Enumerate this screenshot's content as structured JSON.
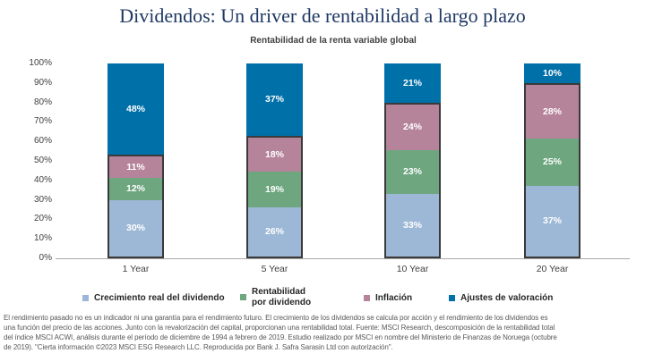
{
  "page": {
    "title": "Dividendos: Un driver de rentabilidad a largo plazo",
    "subtitle": "Rentabilidad de la renta variable global"
  },
  "chart_data": {
    "type": "bar",
    "stacked": true,
    "stack_unit": "percent",
    "title": "Rentabilidad de la renta variable global",
    "categories": [
      "1 Year",
      "5 Year",
      "10 Year",
      "20 Year"
    ],
    "series": [
      {
        "name": "Crecimiento real del dividendo",
        "color": "#9DB8D6",
        "values": [
          30,
          26,
          33,
          37
        ],
        "labels": [
          "30%",
          "26%",
          "33%",
          "37%"
        ]
      },
      {
        "name": "Rentabilidad por dividendo",
        "color": "#6DA67F",
        "values": [
          12,
          19,
          23,
          25
        ],
        "labels": [
          "12%",
          "19%",
          "23%",
          "25%"
        ]
      },
      {
        "name": "Inflación",
        "color": "#B5839A",
        "values": [
          11,
          18,
          24,
          28
        ],
        "labels": [
          "11%",
          "18%",
          "24%",
          "28%"
        ]
      },
      {
        "name": "Ajustes de valoración",
        "color": "#0070A8",
        "values": [
          48,
          37,
          21,
          10
        ],
        "labels": [
          "48%",
          "37%",
          "21%",
          "10%"
        ]
      }
    ],
    "yticks": [
      "0%",
      "10%",
      "20%",
      "30%",
      "40%",
      "50%",
      "60%",
      "70%",
      "80%",
      "90%",
      "100%"
    ],
    "ylim": [
      0,
      100
    ],
    "grid": false,
    "legend_position": "bottom",
    "annotation_style": "first three series outlined together with dark box; value labels in white inside segments",
    "colors": {
      "box_border": "#3A3A3A",
      "axis_line": "#A9A9A9",
      "title_navy": "#1F3864",
      "footnote_gray": "#595959"
    }
  },
  "footnote": {
    "lines": [
      "El rendimiento pasado no es un indicador ni una garantía para el rendimiento futuro. El crecimiento de los dividendos se calcula por acción y el rendimiento de los dividendos es",
      "una función del precio de las acciones. Junto con la revalorización del capital, proporcionan una rentabilidad total. Fuente: MSCI Research, descomposición de la rentabilidad total",
      "del índice MSCI ACWI, análisis durante el período de diciembre de 1994 a febrero de 2019. Estudio realizado por MSCI en nombre del Ministerio de Finanzas de Noruega (octubre",
      "de 2019). \"Cierta información ©2023 MSCI ESG Research LLC. Reproducida por Bank J. Safra Sarasin Ltd con autorización\"."
    ]
  }
}
